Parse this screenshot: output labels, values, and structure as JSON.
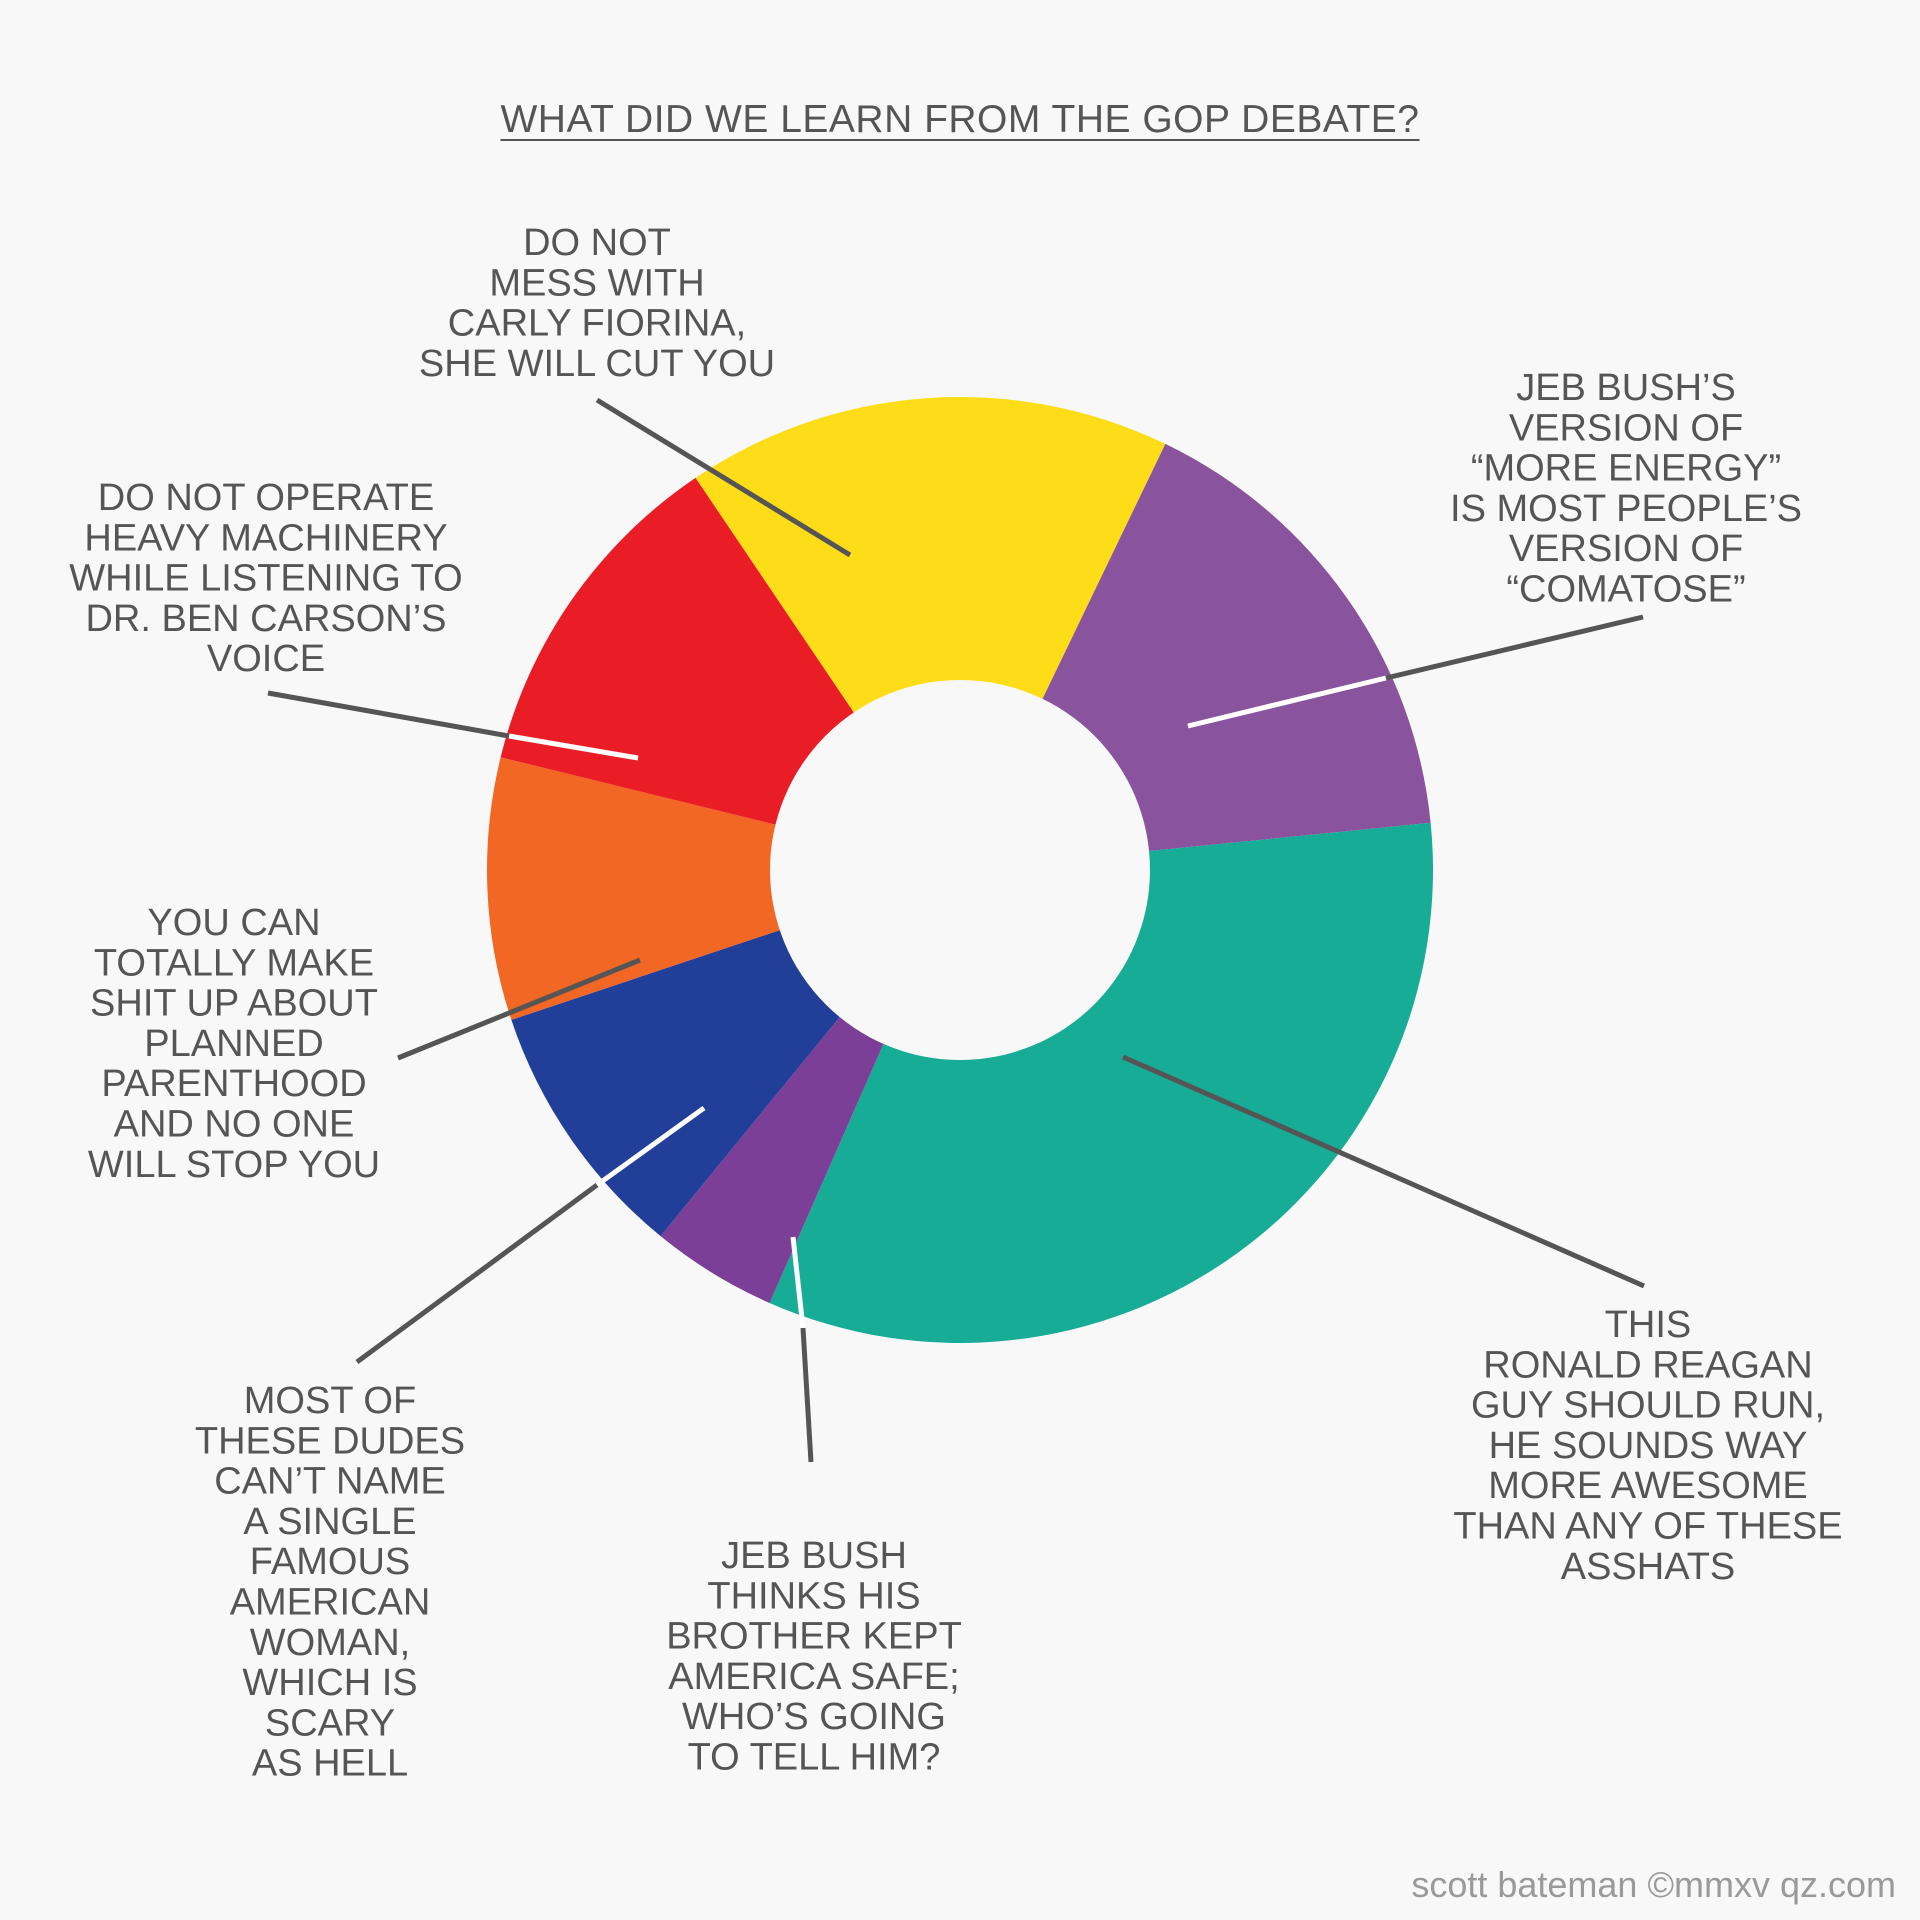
{
  "title": "WHAT DID WE LEARN FROM THE GOP DEBATE?",
  "credit": "scott bateman ©mmxv qz.com",
  "chart_data": {
    "type": "pie",
    "donut": true,
    "title": "WHAT DID WE LEARN FROM THE GOP DEBATE?",
    "slices": [
      {
        "label": "DO NOT MESS WITH CARLY FIORINA, SHE WILL CUT YOU",
        "value": 15.0,
        "color": "#fddd17"
      },
      {
        "label": "JEB BUSH’S VERSION OF “MORE ENERGY” IS MOST PEOPLE’S VERSION OF “COMATOSE”",
        "value": 14.7,
        "color": "#8a539e"
      },
      {
        "label": "THIS RONALD REAGAN GUY SHOULD RUN, HE SOUNDS WAY MORE AWESOME THAN ANY OF THESE ASSHATS",
        "value": 30.0,
        "color": "#16ac96"
      },
      {
        "label": "JEB BUSH THINKS HIS BROTHER KEPT AMERICA SAFE; WHO’S GOING TO TELL HIM?",
        "value": 3.9,
        "color": "#7b3f97"
      },
      {
        "label": "MOST OF THESE DUDES CAN’T NAME A SINGLE FAMOUS AMERICAN WOMAN, WHICH IS SCARY AS HELL",
        "value": 8.1,
        "color": "#213e99"
      },
      {
        "label": "YOU CAN TOTALLY MAKE SHIT UP ABOUT PLANNED PARENTHOOD AND NO ONE WILL STOP YOU",
        "value": 8.1,
        "color": "#f26723"
      },
      {
        "label": "DO NOT OPERATE HEAVY MACHINERY WHILE LISTENING TO DR. BEN CARSON’S VOICE",
        "value": 10.6,
        "color": "#ea1c26"
      }
    ],
    "labels": [
      {
        "lines": [
          "DO NOT",
          "MESS WITH",
          "CARLY FIORINA,",
          "SHE WILL CUT YOU"
        ]
      },
      {
        "lines": [
          "JEB BUSH’S",
          "VERSION OF",
          "“MORE ENERGY”",
          "IS MOST PEOPLE’S",
          "VERSION OF",
          "“COMATOSE”"
        ]
      },
      {
        "lines": [
          "THIS",
          "RONALD REAGAN",
          "GUY SHOULD RUN,",
          "HE SOUNDS WAY",
          "MORE AWESOME",
          "THAN ANY OF THESE",
          "ASSHATS"
        ]
      },
      {
        "lines": [
          "JEB BUSH",
          "THINKS HIS",
          "BROTHER KEPT",
          "AMERICA SAFE;",
          "WHO’S GOING",
          "TO TELL HIM?"
        ]
      },
      {
        "lines": [
          "MOST OF",
          "THESE DUDES",
          "CAN’T NAME",
          "A SINGLE",
          "FAMOUS",
          "AMERICAN",
          "WOMAN,",
          "WHICH IS",
          "SCARY",
          "AS HELL"
        ]
      },
      {
        "lines": [
          "YOU CAN",
          "TOTALLY MAKE",
          "SHIT UP ABOUT",
          "PLANNED",
          "PARENTHOOD",
          "AND NO ONE",
          "WILL STOP YOU"
        ]
      },
      {
        "lines": [
          "DO NOT OPERATE",
          "HEAVY MACHINERY",
          "WHILE LISTENING TO",
          "DR. BEN CARSON’S",
          "VOICE"
        ]
      }
    ],
    "legend": "none",
    "grid": false
  }
}
